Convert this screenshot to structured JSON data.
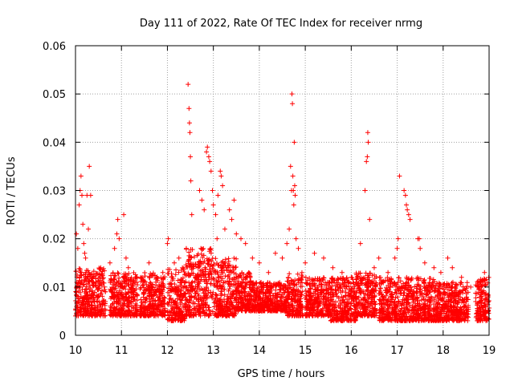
{
  "chart_data": {
    "type": "scatter",
    "title": "Day 111 of 2022, Rate Of TEC Index for receiver nrmg",
    "xlabel": "GPS time / hours",
    "ylabel": "ROTI / TECUs",
    "xlim": [
      10,
      19
    ],
    "ylim": [
      0,
      0.06
    ],
    "xticks": [
      "10",
      "11",
      "12",
      "13",
      "14",
      "15",
      "16",
      "17",
      "18",
      "19"
    ],
    "yticks": [
      "0",
      "0.01",
      "0.02",
      "0.03",
      "0.04",
      "0.05",
      "0.06"
    ],
    "grid": true,
    "marker": "+",
    "marker_color": "#ff0000",
    "series": [
      {
        "name": "ROTI",
        "points": [
          [
            10.02,
            0.021
          ],
          [
            10.05,
            0.018
          ],
          [
            10.08,
            0.027
          ],
          [
            10.1,
            0.03
          ],
          [
            10.12,
            0.033
          ],
          [
            10.14,
            0.029
          ],
          [
            10.16,
            0.023
          ],
          [
            10.18,
            0.019
          ],
          [
            10.2,
            0.017
          ],
          [
            10.25,
            0.029
          ],
          [
            10.3,
            0.035
          ],
          [
            10.33,
            0.029
          ],
          [
            10.28,
            0.022
          ],
          [
            10.22,
            0.016
          ],
          [
            10.35,
            0.012
          ],
          [
            10.45,
            0.01
          ],
          [
            10.55,
            0.014
          ],
          [
            10.65,
            0.009
          ],
          [
            10.75,
            0.015
          ],
          [
            10.85,
            0.018
          ],
          [
            10.9,
            0.021
          ],
          [
            10.92,
            0.024
          ],
          [
            10.95,
            0.02
          ],
          [
            11.05,
            0.025
          ],
          [
            11.1,
            0.016
          ],
          [
            11.15,
            0.014
          ],
          [
            11.3,
            0.011
          ],
          [
            11.45,
            0.012
          ],
          [
            11.6,
            0.015
          ],
          [
            11.75,
            0.011
          ],
          [
            11.9,
            0.013
          ],
          [
            12.0,
            0.019
          ],
          [
            12.02,
            0.02
          ],
          [
            12.15,
            0.015
          ],
          [
            12.25,
            0.016
          ],
          [
            12.45,
            0.052
          ],
          [
            12.47,
            0.047
          ],
          [
            12.48,
            0.044
          ],
          [
            12.49,
            0.042
          ],
          [
            12.5,
            0.037
          ],
          [
            12.51,
            0.032
          ],
          [
            12.53,
            0.025
          ],
          [
            12.7,
            0.03
          ],
          [
            12.75,
            0.028
          ],
          [
            12.8,
            0.026
          ],
          [
            12.85,
            0.038
          ],
          [
            12.87,
            0.039
          ],
          [
            12.9,
            0.037
          ],
          [
            12.92,
            0.036
          ],
          [
            12.95,
            0.034
          ],
          [
            12.98,
            0.03
          ],
          [
            13.0,
            0.027
          ],
          [
            13.05,
            0.025
          ],
          [
            13.08,
            0.02
          ],
          [
            13.15,
            0.034
          ],
          [
            13.17,
            0.033
          ],
          [
            13.2,
            0.031
          ],
          [
            13.1,
            0.029
          ],
          [
            13.25,
            0.022
          ],
          [
            13.35,
            0.026
          ],
          [
            13.4,
            0.024
          ],
          [
            13.45,
            0.028
          ],
          [
            13.5,
            0.021
          ],
          [
            13.6,
            0.02
          ],
          [
            13.7,
            0.019
          ],
          [
            13.85,
            0.016
          ],
          [
            14.0,
            0.015
          ],
          [
            14.2,
            0.013
          ],
          [
            14.35,
            0.017
          ],
          [
            14.5,
            0.016
          ],
          [
            14.6,
            0.019
          ],
          [
            14.65,
            0.022
          ],
          [
            14.68,
            0.035
          ],
          [
            14.7,
            0.03
          ],
          [
            14.71,
            0.05
          ],
          [
            14.72,
            0.048
          ],
          [
            14.73,
            0.033
          ],
          [
            14.74,
            0.03
          ],
          [
            14.75,
            0.027
          ],
          [
            14.76,
            0.04
          ],
          [
            14.77,
            0.031
          ],
          [
            14.78,
            0.029
          ],
          [
            14.8,
            0.02
          ],
          [
            14.85,
            0.018
          ],
          [
            15.0,
            0.015
          ],
          [
            15.2,
            0.017
          ],
          [
            15.4,
            0.016
          ],
          [
            15.6,
            0.014
          ],
          [
            15.8,
            0.013
          ],
          [
            16.0,
            0.012
          ],
          [
            16.2,
            0.019
          ],
          [
            16.3,
            0.03
          ],
          [
            16.33,
            0.036
          ],
          [
            16.35,
            0.037
          ],
          [
            16.36,
            0.042
          ],
          [
            16.37,
            0.04
          ],
          [
            16.4,
            0.024
          ],
          [
            16.5,
            0.014
          ],
          [
            16.6,
            0.016
          ],
          [
            16.8,
            0.013
          ],
          [
            16.95,
            0.016
          ],
          [
            17.0,
            0.018
          ],
          [
            17.02,
            0.02
          ],
          [
            17.05,
            0.033
          ],
          [
            17.15,
            0.03
          ],
          [
            17.18,
            0.029
          ],
          [
            17.2,
            0.027
          ],
          [
            17.22,
            0.026
          ],
          [
            17.25,
            0.025
          ],
          [
            17.28,
            0.024
          ],
          [
            17.45,
            0.02
          ],
          [
            17.48,
            0.02
          ],
          [
            17.5,
            0.018
          ],
          [
            17.6,
            0.015
          ],
          [
            17.8,
            0.014
          ],
          [
            17.95,
            0.013
          ],
          [
            18.1,
            0.016
          ],
          [
            18.2,
            0.014
          ],
          [
            18.4,
            0.012
          ],
          [
            18.6,
            0.01
          ],
          [
            18.8,
            0.011
          ],
          [
            18.9,
            0.013
          ]
        ]
      }
    ],
    "dense_band": {
      "description": "bulk of ROTI samples",
      "segments": [
        [
          10.0,
          10.65,
          0.004,
          0.014
        ],
        [
          10.75,
          11.35,
          0.004,
          0.013
        ],
        [
          11.4,
          11.95,
          0.004,
          0.013
        ],
        [
          12.0,
          12.4,
          0.003,
          0.014
        ],
        [
          12.4,
          13.0,
          0.004,
          0.018
        ],
        [
          13.0,
          13.5,
          0.004,
          0.016
        ],
        [
          13.5,
          13.85,
          0.005,
          0.013
        ],
        [
          13.85,
          14.6,
          0.005,
          0.011
        ],
        [
          14.6,
          14.95,
          0.004,
          0.013
        ],
        [
          15.0,
          15.55,
          0.004,
          0.012
        ],
        [
          15.55,
          16.1,
          0.003,
          0.012
        ],
        [
          16.1,
          16.55,
          0.004,
          0.013
        ],
        [
          16.6,
          17.35,
          0.003,
          0.012
        ],
        [
          17.35,
          17.9,
          0.003,
          0.012
        ],
        [
          17.9,
          18.55,
          0.003,
          0.011
        ],
        [
          18.7,
          19.0,
          0.003,
          0.012
        ]
      ]
    }
  }
}
